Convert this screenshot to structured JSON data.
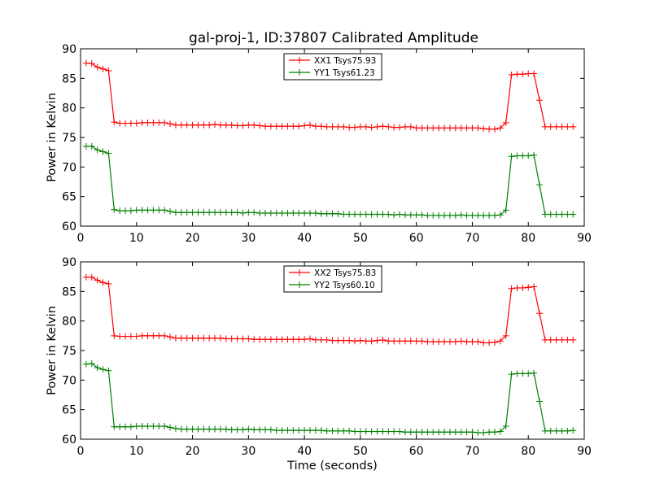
{
  "chart_data": [
    {
      "type": "line",
      "title": "gal-proj-1, ID:37807 Calibrated Amplitude",
      "xlabel": "",
      "ylabel": "Power in Kelvin",
      "xlim": [
        0,
        90
      ],
      "ylim": [
        60,
        90
      ],
      "xticks": [
        "0",
        "10",
        "20",
        "30",
        "40",
        "50",
        "60",
        "70",
        "80",
        "90"
      ],
      "yticks": [
        "60",
        "65",
        "70",
        "75",
        "80",
        "85",
        "90"
      ],
      "grid": false,
      "legend_position": "top-center",
      "x": [
        1,
        2,
        3,
        4,
        5,
        6,
        7,
        8,
        9,
        10,
        11,
        12,
        13,
        14,
        15,
        16,
        17,
        18,
        19,
        20,
        21,
        22,
        23,
        24,
        25,
        26,
        27,
        28,
        29,
        30,
        31,
        32,
        33,
        34,
        35,
        36,
        37,
        38,
        39,
        40,
        41,
        42,
        43,
        44,
        45,
        46,
        47,
        48,
        49,
        50,
        51,
        52,
        53,
        54,
        55,
        56,
        57,
        58,
        59,
        60,
        61,
        62,
        63,
        64,
        65,
        66,
        67,
        68,
        69,
        70,
        71,
        72,
        73,
        74,
        75,
        76,
        77,
        78,
        79,
        80,
        81,
        82,
        83,
        84,
        85,
        86,
        87,
        88
      ],
      "series": [
        {
          "name": "XX1 Tsys75.93",
          "color": "#ff0000",
          "values": [
            87.6,
            87.5,
            86.9,
            86.6,
            86.3,
            77.6,
            77.4,
            77.4,
            77.4,
            77.4,
            77.5,
            77.5,
            77.5,
            77.5,
            77.5,
            77.3,
            77.1,
            77.1,
            77.1,
            77.1,
            77.1,
            77.1,
            77.1,
            77.2,
            77.1,
            77.1,
            77.1,
            77.0,
            77.0,
            77.1,
            77.1,
            77.0,
            76.9,
            76.9,
            76.9,
            76.9,
            76.9,
            76.9,
            76.9,
            77.0,
            77.1,
            76.9,
            76.9,
            76.8,
            76.8,
            76.8,
            76.8,
            76.7,
            76.7,
            76.8,
            76.8,
            76.7,
            76.8,
            76.9,
            76.8,
            76.7,
            76.7,
            76.8,
            76.8,
            76.6,
            76.6,
            76.6,
            76.6,
            76.6,
            76.6,
            76.6,
            76.6,
            76.6,
            76.6,
            76.6,
            76.6,
            76.5,
            76.4,
            76.4,
            76.6,
            77.5,
            85.6,
            85.7,
            85.7,
            85.8,
            85.8,
            81.3,
            76.8,
            76.8,
            76.8,
            76.8,
            76.8,
            76.8
          ]
        },
        {
          "name": "YY1 Tsys61.23",
          "color": "#008000",
          "values": [
            73.5,
            73.5,
            72.9,
            72.6,
            72.3,
            62.8,
            62.6,
            62.6,
            62.6,
            62.7,
            62.7,
            62.7,
            62.7,
            62.7,
            62.7,
            62.5,
            62.3,
            62.3,
            62.3,
            62.3,
            62.3,
            62.3,
            62.3,
            62.3,
            62.3,
            62.3,
            62.3,
            62.3,
            62.2,
            62.3,
            62.3,
            62.2,
            62.2,
            62.2,
            62.2,
            62.2,
            62.2,
            62.2,
            62.2,
            62.2,
            62.2,
            62.2,
            62.1,
            62.1,
            62.1,
            62.1,
            62.0,
            62.0,
            62.0,
            62.0,
            62.0,
            62.0,
            62.0,
            62.0,
            62.0,
            61.9,
            62.0,
            61.9,
            61.9,
            61.9,
            61.9,
            61.8,
            61.8,
            61.8,
            61.8,
            61.8,
            61.8,
            61.9,
            61.8,
            61.8,
            61.8,
            61.8,
            61.8,
            61.8,
            61.9,
            62.7,
            71.8,
            71.9,
            71.9,
            71.9,
            72.0,
            67.0,
            62.0,
            62.0,
            62.0,
            62.0,
            62.0,
            62.0
          ]
        }
      ]
    },
    {
      "type": "line",
      "title": "",
      "xlabel": "Time (seconds)",
      "ylabel": "Power in Kelvin",
      "xlim": [
        0,
        90
      ],
      "ylim": [
        60,
        90
      ],
      "xticks": [
        "0",
        "10",
        "20",
        "30",
        "40",
        "50",
        "60",
        "70",
        "80",
        "90"
      ],
      "yticks": [
        "60",
        "65",
        "70",
        "75",
        "80",
        "85",
        "90"
      ],
      "grid": false,
      "legend_position": "top-center",
      "x": [
        1,
        2,
        3,
        4,
        5,
        6,
        7,
        8,
        9,
        10,
        11,
        12,
        13,
        14,
        15,
        16,
        17,
        18,
        19,
        20,
        21,
        22,
        23,
        24,
        25,
        26,
        27,
        28,
        29,
        30,
        31,
        32,
        33,
        34,
        35,
        36,
        37,
        38,
        39,
        40,
        41,
        42,
        43,
        44,
        45,
        46,
        47,
        48,
        49,
        50,
        51,
        52,
        53,
        54,
        55,
        56,
        57,
        58,
        59,
        60,
        61,
        62,
        63,
        64,
        65,
        66,
        67,
        68,
        69,
        70,
        71,
        72,
        73,
        74,
        75,
        76,
        77,
        78,
        79,
        80,
        81,
        82,
        83,
        84,
        85,
        86,
        87,
        88
      ],
      "series": [
        {
          "name": "XX2 Tsys75.83",
          "color": "#ff0000",
          "values": [
            87.4,
            87.4,
            86.9,
            86.5,
            86.3,
            77.5,
            77.4,
            77.4,
            77.4,
            77.4,
            77.5,
            77.5,
            77.5,
            77.5,
            77.5,
            77.3,
            77.1,
            77.1,
            77.1,
            77.1,
            77.1,
            77.1,
            77.1,
            77.1,
            77.1,
            77.0,
            77.0,
            77.0,
            77.0,
            77.0,
            76.9,
            76.9,
            76.9,
            76.9,
            76.9,
            76.9,
            76.9,
            76.9,
            76.9,
            76.9,
            77.0,
            76.8,
            76.8,
            76.8,
            76.7,
            76.7,
            76.7,
            76.7,
            76.6,
            76.7,
            76.6,
            76.6,
            76.7,
            76.8,
            76.6,
            76.6,
            76.6,
            76.6,
            76.6,
            76.6,
            76.6,
            76.5,
            76.5,
            76.5,
            76.5,
            76.5,
            76.5,
            76.6,
            76.5,
            76.5,
            76.5,
            76.3,
            76.3,
            76.4,
            76.6,
            77.5,
            85.5,
            85.6,
            85.6,
            85.7,
            85.8,
            81.3,
            76.8,
            76.8,
            76.8,
            76.8,
            76.8,
            76.8
          ]
        },
        {
          "name": "YY2 Tsys60.10",
          "color": "#008000",
          "values": [
            72.7,
            72.8,
            72.1,
            71.8,
            71.6,
            62.1,
            62.1,
            62.1,
            62.1,
            62.2,
            62.2,
            62.2,
            62.2,
            62.2,
            62.2,
            62.0,
            61.8,
            61.7,
            61.7,
            61.7,
            61.7,
            61.7,
            61.7,
            61.7,
            61.7,
            61.7,
            61.6,
            61.6,
            61.6,
            61.7,
            61.6,
            61.6,
            61.6,
            61.6,
            61.5,
            61.5,
            61.5,
            61.5,
            61.5,
            61.5,
            61.5,
            61.5,
            61.5,
            61.4,
            61.4,
            61.4,
            61.4,
            61.4,
            61.3,
            61.3,
            61.3,
            61.3,
            61.3,
            61.3,
            61.3,
            61.3,
            61.3,
            61.2,
            61.2,
            61.2,
            61.2,
            61.2,
            61.2,
            61.2,
            61.2,
            61.2,
            61.2,
            61.2,
            61.2,
            61.2,
            61.1,
            61.1,
            61.2,
            61.2,
            61.3,
            62.2,
            71.0,
            71.1,
            71.1,
            71.1,
            71.2,
            66.4,
            61.4,
            61.4,
            61.4,
            61.4,
            61.4,
            61.5
          ]
        }
      ]
    }
  ]
}
